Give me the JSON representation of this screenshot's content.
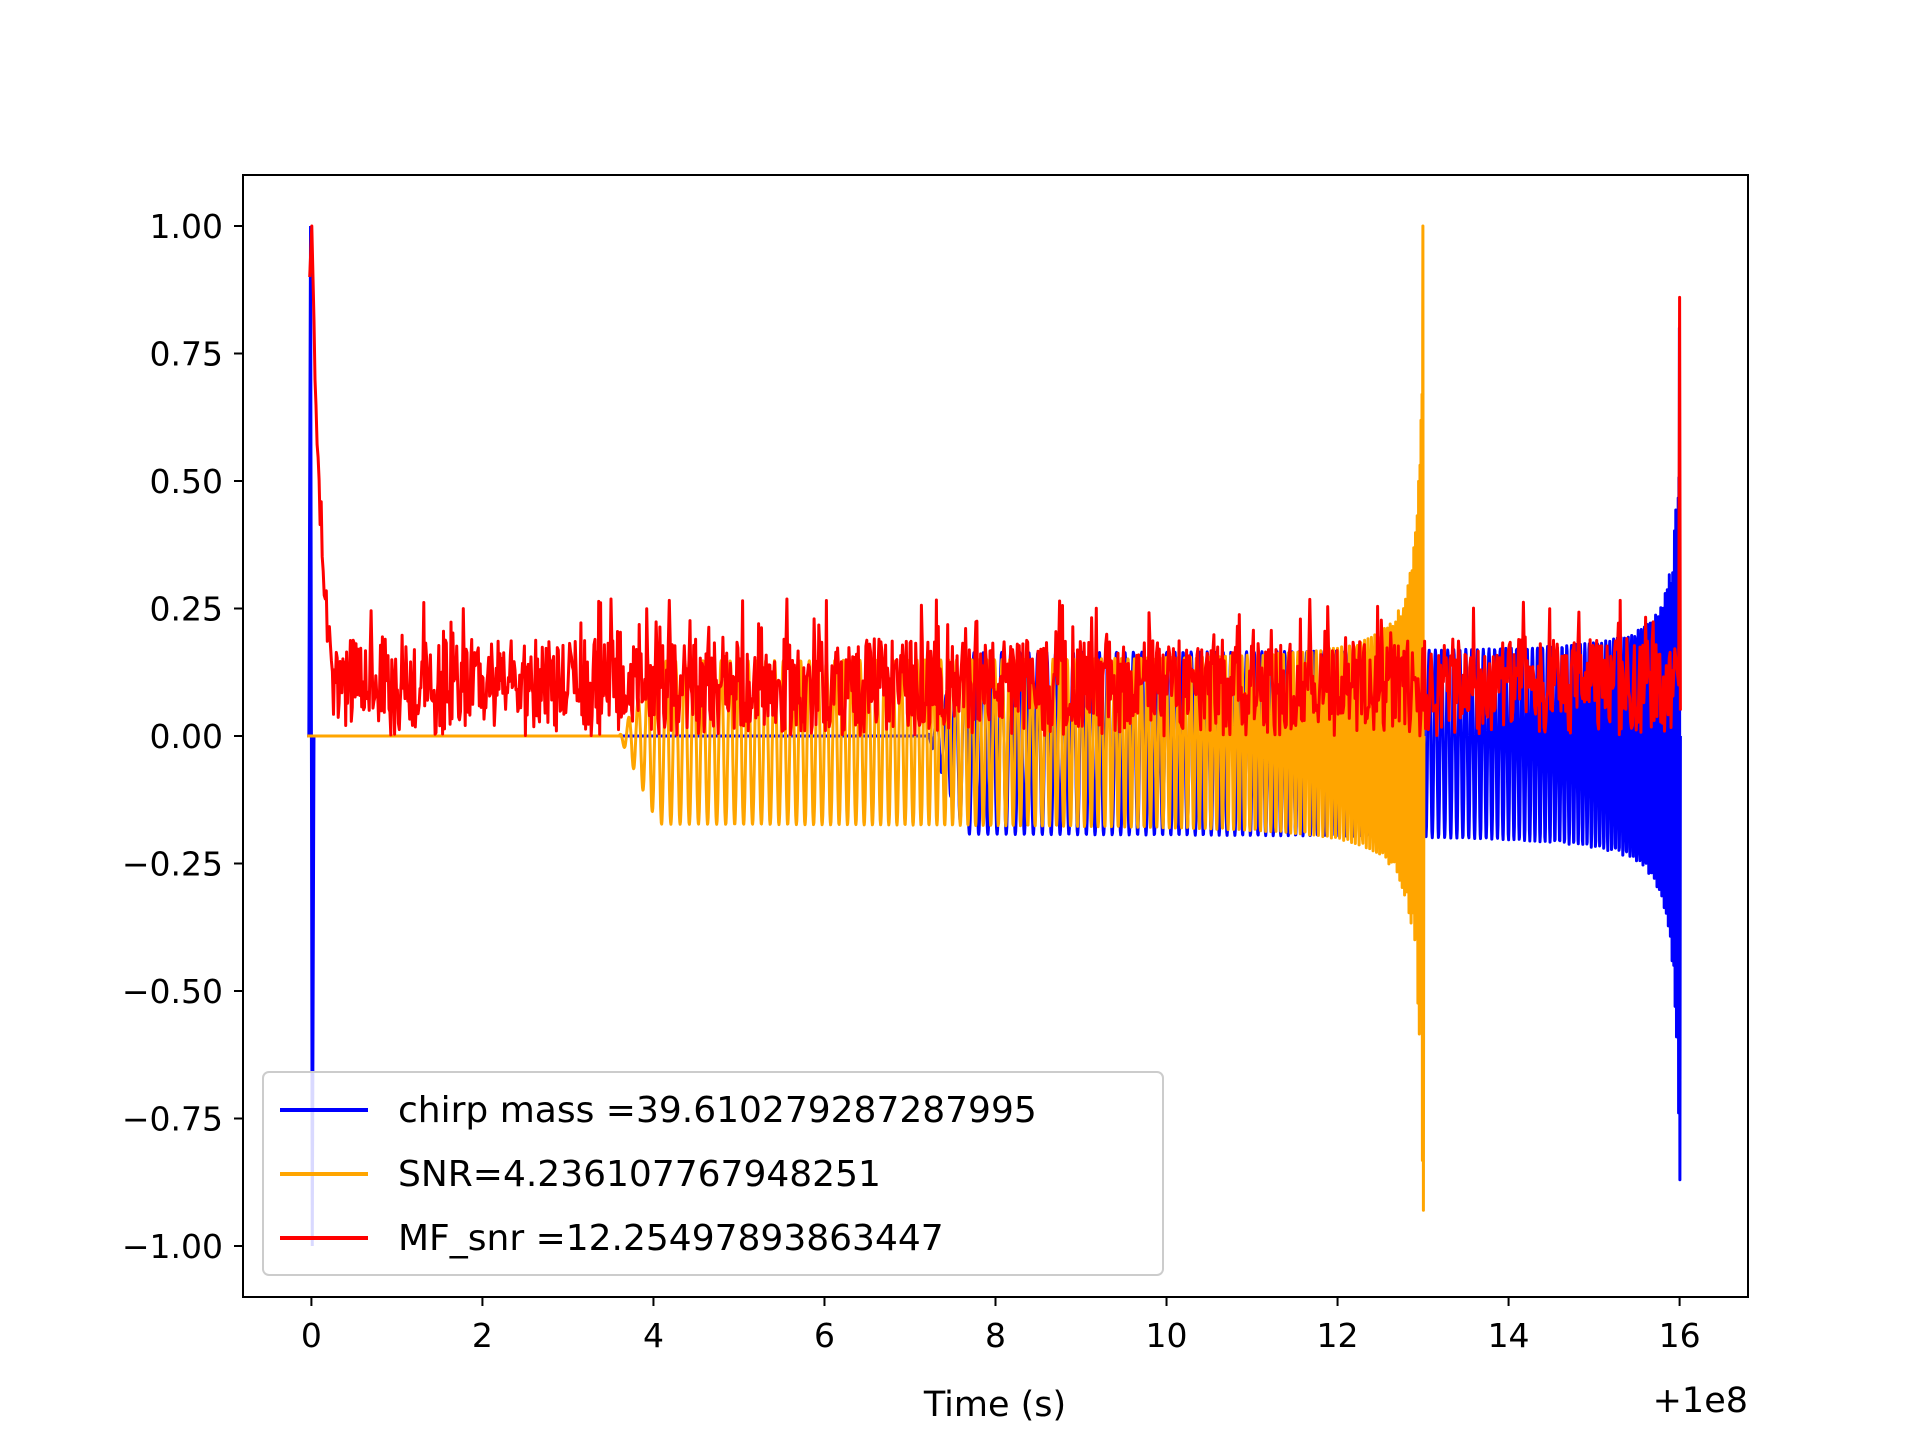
{
  "chart_data": {
    "type": "line",
    "title": "",
    "xlabel": "Time (s)",
    "ylabel": "",
    "x_offset_label": "+1e8",
    "xlim": [
      -0.8,
      16.8
    ],
    "ylim": [
      -1.1,
      1.1
    ],
    "x_ticks": [
      0,
      2,
      4,
      6,
      8,
      10,
      12,
      14,
      16
    ],
    "x_tick_labels": [
      "0",
      "2",
      "4",
      "6",
      "8",
      "10",
      "12",
      "14",
      "16"
    ],
    "y_ticks": [
      -1.0,
      -0.75,
      -0.5,
      -0.25,
      0.0,
      0.25,
      0.5,
      0.75,
      1.0
    ],
    "y_tick_labels": [
      "−1.00",
      "−0.75",
      "−0.50",
      "−0.25",
      "0.00",
      "0.25",
      "0.50",
      "0.75",
      "1.00"
    ],
    "grid": false,
    "legend_position": "lower-left",
    "series": [
      {
        "name": "chirp mass =39.610279287287995",
        "color": "#0000ff",
        "shape": "chirp",
        "start": 7.2,
        "end": 16.0,
        "base_amplitude": 0.19,
        "final_top": 0.8,
        "final_bottom": -0.87,
        "initial_spike": [
          1.0,
          -1.0
        ]
      },
      {
        "name": "SNR=4.236107767948251",
        "color": "#ffa500",
        "shape": "chirp",
        "start": 3.6,
        "end": 13.0,
        "base_amplitude": 0.17,
        "final_top": 1.0,
        "final_bottom": -0.93
      },
      {
        "name": "MF_snr =12.25497893863447",
        "color": "#ff0000",
        "shape": "noise",
        "start": 0.0,
        "end": 16.0,
        "noise_low": 0.02,
        "noise_high": 0.19,
        "noise_peak": 0.27,
        "initial_peak": 1.0,
        "final_peak": 0.86
      }
    ]
  }
}
